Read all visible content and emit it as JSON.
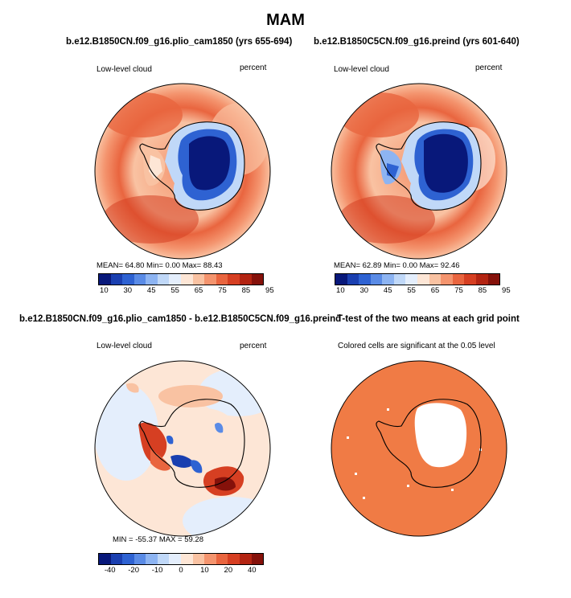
{
  "title": "MAM",
  "panels": [
    {
      "title": "b.e12.B1850CN.f09_g16.plio_cam1850 (yrs 655-694)",
      "left_label": "Low-level cloud",
      "right_label": "percent",
      "stats_text": "MEAN=   64.80   Min=     0.00   Max=   88.43"
    },
    {
      "title": "b.e12.B1850C5CN.f09_g16.preind (yrs 601-640)",
      "left_label": "Low-level cloud",
      "right_label": "percent",
      "stats_text": "MEAN=   62.89   Min=     0.00   Max=   92.46"
    },
    {
      "title": "b.e12.B1850CN.f09_g16.plio_cam1850 - b.e12.B1850C5CN.f09_g16.preind",
      "left_label": "Low-level cloud",
      "right_label": "percent",
      "stats_text": "MIN = -55.37  MAX =  59.28"
    },
    {
      "title": "T-test of the two means at each grid point",
      "subtitle": "Colored cells are significant at the 0.05 level"
    }
  ],
  "colorbars": {
    "abs": {
      "ticks": [
        "10",
        "30",
        "45",
        "55",
        "65",
        "75",
        "85",
        "95"
      ],
      "colors": [
        "#08187a",
        "#1a3fb0",
        "#2e62d2",
        "#5a8be6",
        "#8db4f2",
        "#c0d8f8",
        "#e4eefc",
        "#fde6d6",
        "#f9c2a2",
        "#f4946e",
        "#e9653f",
        "#d63f22",
        "#b32412",
        "#85110a"
      ]
    },
    "diff": {
      "ticks": [
        "-40",
        "-20",
        "-10",
        "0",
        "10",
        "20",
        "40"
      ],
      "colors": [
        "#08187a",
        "#1a3fb0",
        "#2e62d2",
        "#5a8be6",
        "#8db4f2",
        "#c0d8f8",
        "#e4eefc",
        "#fde6d6",
        "#f9c2a2",
        "#f4946e",
        "#e9653f",
        "#d63f22",
        "#b32412",
        "#85110a"
      ]
    }
  },
  "chart_data": [
    {
      "type": "heatmap",
      "title": "b.e12.B1850CN.f09_g16.plio_cam1850 (yrs 655-694)",
      "variable": "Low-level cloud",
      "units": "percent",
      "mean": 64.8,
      "min": 0.0,
      "max": 88.43,
      "levels": [
        10,
        30,
        45,
        55,
        65,
        75,
        85,
        95
      ]
    },
    {
      "type": "heatmap",
      "title": "b.e12.B1850C5CN.f09_g16.preind (yrs 601-640)",
      "variable": "Low-level cloud",
      "units": "percent",
      "mean": 62.89,
      "min": 0.0,
      "max": 92.46,
      "levels": [
        10,
        30,
        45,
        55,
        65,
        75,
        85,
        95
      ]
    },
    {
      "type": "heatmap",
      "title": "b.e12.B1850CN.f09_g16.plio_cam1850 - b.e12.B1850C5CN.f09_g16.preind",
      "variable": "Low-level cloud",
      "units": "percent",
      "min": -55.37,
      "max": 59.28,
      "levels": [
        -40,
        -20,
        -10,
        0,
        10,
        20,
        40
      ]
    },
    {
      "type": "heatmap",
      "title": "T-test of the two means at each grid point",
      "note": "Colored cells are significant at the 0.05 level",
      "significance_level": 0.05
    }
  ]
}
